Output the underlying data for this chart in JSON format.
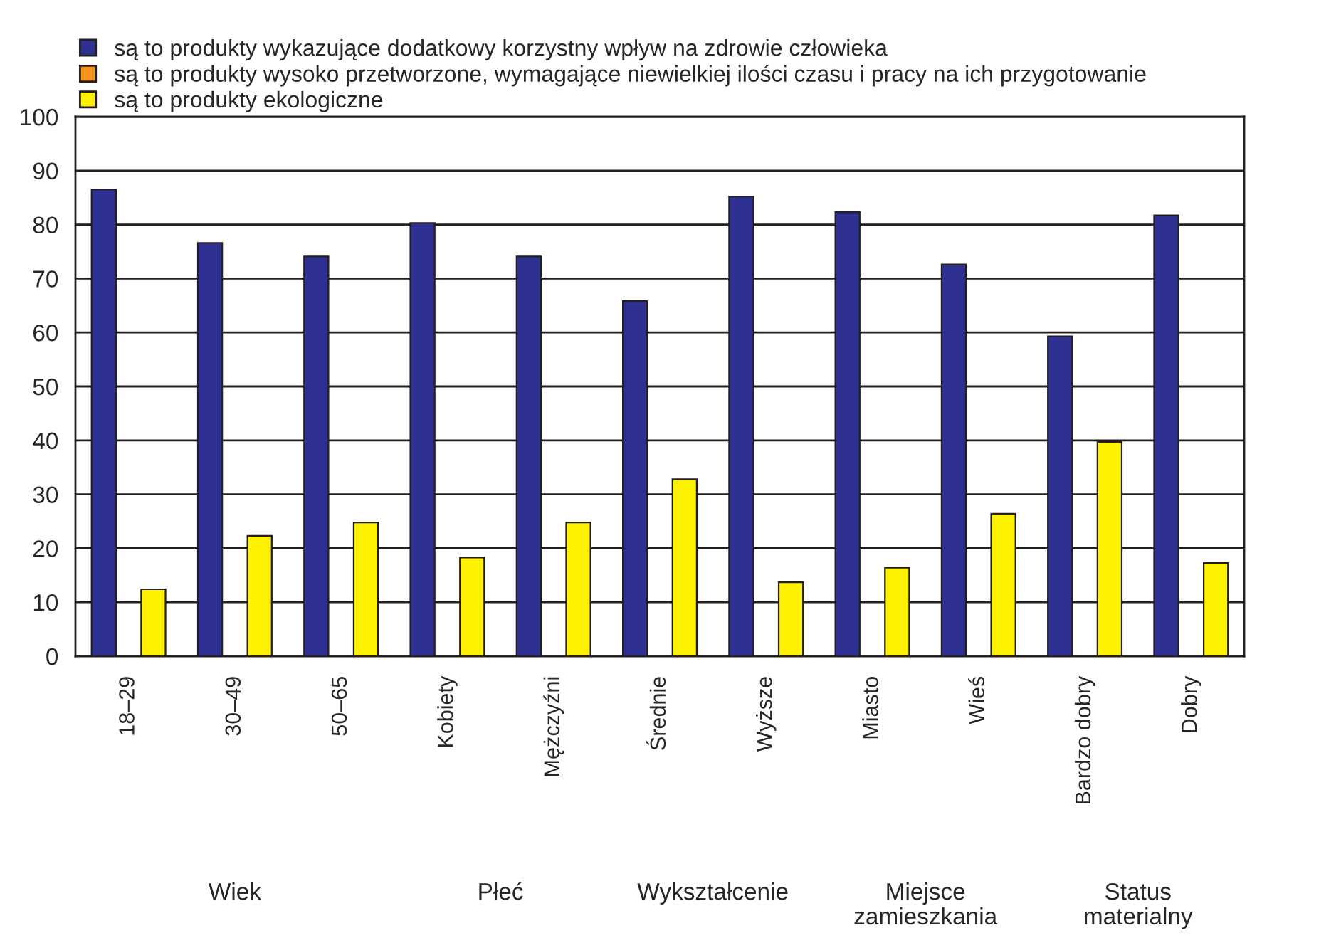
{
  "chart_data": {
    "type": "bar",
    "categories": [
      "18–29",
      "30–49",
      "50–65",
      "Kobiety",
      "Mężczyźni",
      "Średnie",
      "Wyższe",
      "Miasto",
      "Wieś",
      "Bardzo dobry",
      "Dobry"
    ],
    "series": [
      {
        "name": "są to produkty wykazujące dodatkowy korzystny wpływ na zdrowie człowieka",
        "color": "#2e3192",
        "values": [
          86.5,
          76.6,
          74.1,
          80.3,
          74.1,
          65.8,
          85.2,
          82.3,
          72.6,
          59.3,
          81.7
        ]
      },
      {
        "name": "są to produkty wysoko przetworzone, wymagające niewielkiej ilości czasu i pracy na ich przygotowanie",
        "color": "#f7941d",
        "values": [
          null,
          null,
          null,
          null,
          null,
          null,
          null,
          null,
          null,
          null,
          null
        ]
      },
      {
        "name": "są to produkty ekologiczne",
        "color": "#fff200",
        "values": [
          12.4,
          22.3,
          24.8,
          18.3,
          24.8,
          32.8,
          13.7,
          16.4,
          26.4,
          39.7,
          17.3
        ]
      }
    ],
    "ylim": [
      0,
      100
    ],
    "yticks": [
      0,
      10,
      20,
      30,
      40,
      50,
      60,
      70,
      80,
      90,
      100
    ],
    "grid": "y",
    "legend": "top left",
    "annotations": [
      "Wiek",
      "Płeć",
      "Wykształcenie",
      "Miejsce\nzamieszkania",
      "Status\nmaterialny"
    ]
  }
}
